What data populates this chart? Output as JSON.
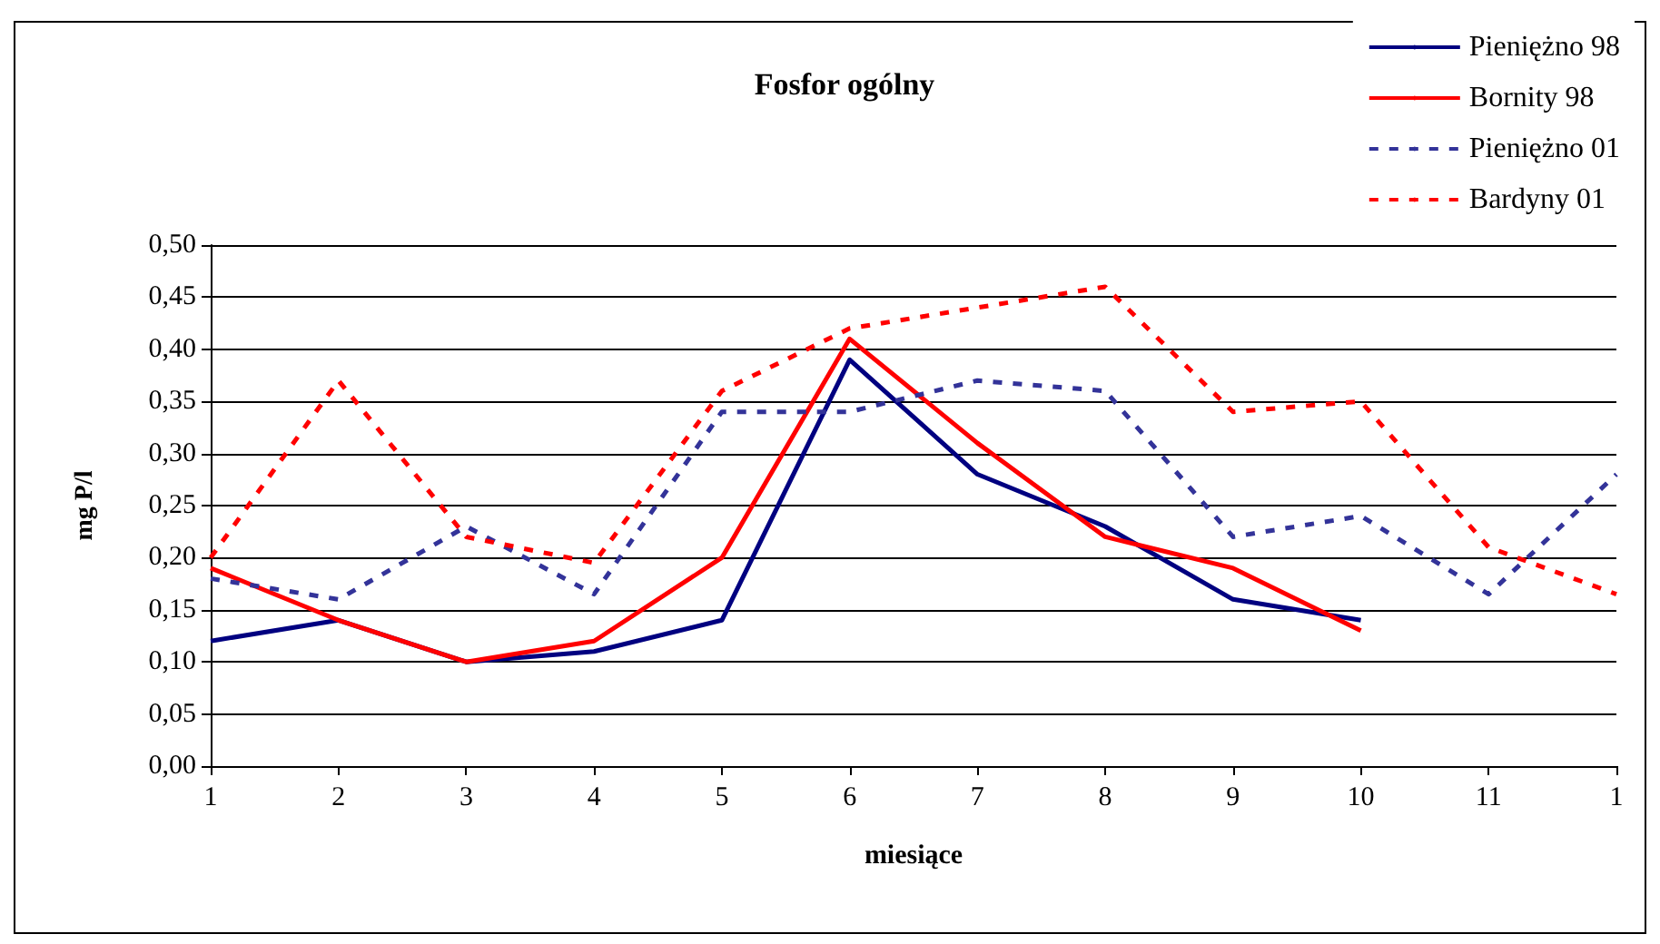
{
  "chart_data": {
    "type": "line",
    "title": "Fosfor ogólny",
    "xlabel": "miesiące",
    "ylabel": "mg P/l",
    "categories": [
      "1",
      "2",
      "3",
      "4",
      "5",
      "6",
      "7",
      "8",
      "9",
      "10",
      "11",
      "1"
    ],
    "series": [
      {
        "name": "Pieniężno 98",
        "color": "#000080",
        "line_style": "solid",
        "values": [
          0.12,
          0.14,
          0.1,
          0.11,
          0.14,
          0.39,
          0.28,
          0.23,
          0.16,
          0.14,
          null,
          null
        ]
      },
      {
        "name": "Bornity 98",
        "color": "#ff0000",
        "line_style": "solid",
        "values": [
          0.19,
          0.14,
          0.1,
          0.12,
          0.2,
          0.41,
          0.31,
          0.22,
          0.19,
          0.13,
          null,
          null
        ]
      },
      {
        "name": "Pieniężno 01",
        "color": "#333399",
        "line_style": "dashed",
        "values": [
          0.18,
          0.16,
          0.23,
          0.165,
          0.34,
          0.34,
          0.37,
          0.36,
          0.22,
          0.24,
          0.165,
          0.28
        ]
      },
      {
        "name": "Bardyny 01",
        "color": "#ff0000",
        "line_style": "dashed",
        "values": [
          0.2,
          0.37,
          0.22,
          0.195,
          0.36,
          0.42,
          0.44,
          0.46,
          0.34,
          0.35,
          0.21,
          0.165
        ]
      }
    ],
    "ylim": [
      0,
      0.5
    ],
    "yticks": [
      {
        "value": 0,
        "label": "0,00"
      },
      {
        "value": 0.05,
        "label": "0,05"
      },
      {
        "value": 0.1,
        "label": "0,10"
      },
      {
        "value": 0.15,
        "label": "0,15"
      },
      {
        "value": 0.2,
        "label": "0,20"
      },
      {
        "value": 0.25,
        "label": "0,25"
      },
      {
        "value": 0.3,
        "label": "0,30"
      },
      {
        "value": 0.35,
        "label": "0,35"
      },
      {
        "value": 0.4,
        "label": "0,40"
      },
      {
        "value": 0.45,
        "label": "0,45"
      },
      {
        "value": 0.5,
        "label": "0,50"
      }
    ],
    "grid": "y",
    "legend": "top right",
    "marker": "none"
  }
}
